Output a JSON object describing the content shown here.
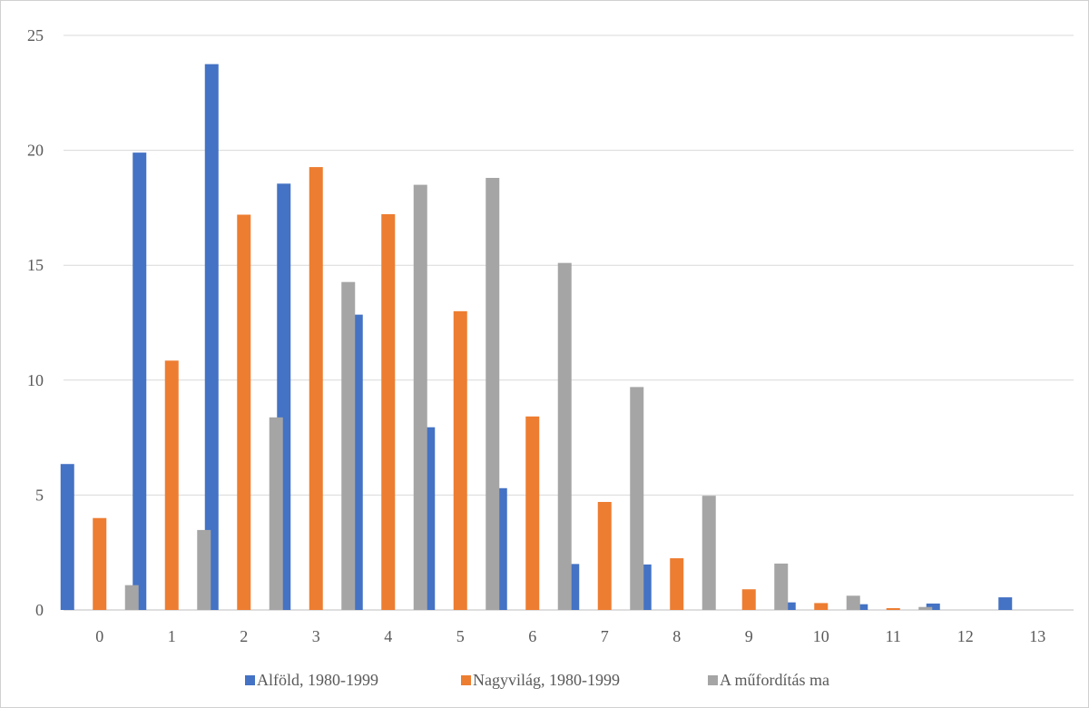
{
  "chart_data": {
    "type": "bar",
    "categories": [
      "0",
      "1",
      "2",
      "3",
      "4",
      "5",
      "6",
      "7",
      "8",
      "9",
      "10",
      "11",
      "12",
      "13"
    ],
    "series": [
      {
        "name": "Alföld, 1980-1999",
        "color": "#4472C4",
        "values": [
          6.35,
          19.9,
          23.75,
          18.55,
          12.85,
          7.95,
          5.3,
          2.0,
          1.98,
          0,
          0.33,
          0.25,
          0.28,
          0.55
        ]
      },
      {
        "name": "Nagyvilág, 1980-1999",
        "color": "#ED7D31",
        "values": [
          4.0,
          10.85,
          17.2,
          19.27,
          17.22,
          13.0,
          8.42,
          4.7,
          2.25,
          0.9,
          0.3,
          0.08,
          0,
          0
        ]
      },
      {
        "name": "A műfordítás ma",
        "color": "#A5A5A5",
        "values": [
          1.08,
          3.48,
          8.38,
          14.27,
          18.5,
          18.8,
          15.1,
          9.7,
          4.97,
          2.02,
          0.62,
          0.13,
          0,
          0
        ]
      }
    ],
    "yticks": [
      0,
      5,
      10,
      15,
      20,
      25
    ],
    "ylim": [
      0,
      25
    ],
    "title": "",
    "xlabel": "",
    "ylabel": "",
    "grid": true,
    "legend_position": "bottom"
  }
}
